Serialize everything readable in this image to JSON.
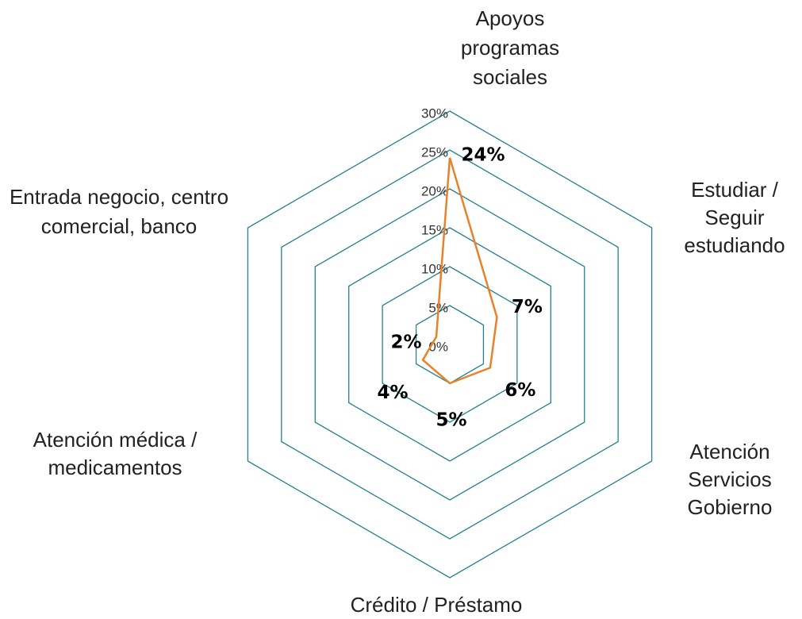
{
  "chart_data": {
    "type": "radar",
    "categories": [
      "Apoyos programas sociales",
      "Estudiar / Seguir estudiando",
      "Atención Servicios Gobierno",
      "Crédito / Préstamo",
      "Atención médica / medicamentos",
      "Entrada negocio, centro comercial, banco"
    ],
    "series": [
      {
        "color": "#e8822a",
        "values": [
          24,
          7,
          6,
          5,
          4,
          2
        ],
        "value_labels": [
          "24%",
          "7%",
          "6%",
          "5%",
          "4%",
          "2%"
        ]
      }
    ],
    "ylim": [
      0,
      30
    ],
    "yticks": [
      {
        "value": 0,
        "label": "0%"
      },
      {
        "value": 5,
        "label": "5%"
      },
      {
        "value": 10,
        "label": "10%"
      },
      {
        "value": 15,
        "label": "15%"
      },
      {
        "value": 20,
        "label": "20%"
      },
      {
        "value": 25,
        "label": "25%"
      },
      {
        "value": 30,
        "label": "30%"
      }
    ],
    "grid_color": "#26808f"
  }
}
